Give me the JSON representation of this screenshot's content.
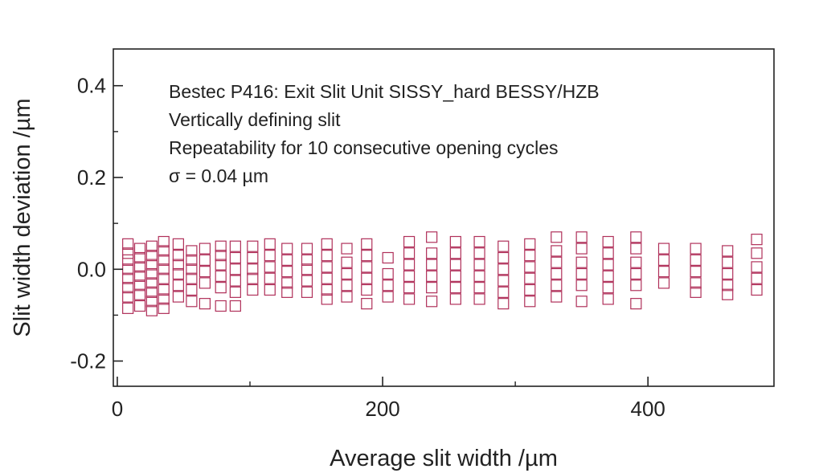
{
  "chart_data": {
    "type": "scatter",
    "xlabel": "Average slit width /µm",
    "ylabel": "Slit width deviation /µm",
    "xlim": [
      -3,
      495
    ],
    "ylim": [
      -0.255,
      0.48
    ],
    "xticks": [
      0,
      200,
      400
    ],
    "yticks": [
      -0.2,
      0.0,
      0.2,
      0.4
    ],
    "xtick_labels": [
      "0",
      "200",
      "400"
    ],
    "ytick_labels": [
      "-0.2",
      "0.0",
      "0.2",
      "0.4"
    ],
    "grid": false,
    "marker": "open-square",
    "marker_color": "#b0305a",
    "annotations": [
      "Bestec P416: Exit Slit Unit SISSY_hard BESSY/HZB",
      "Vertically defining slit",
      "Repeatability for 10 consecutive opening cycles",
      "σ = 0.04 µm"
    ],
    "series": [
      {
        "points": [
          [
            8,
            0.055
          ],
          [
            8,
            0.035
          ],
          [
            8,
            0.02
          ],
          [
            8,
            0.0
          ],
          [
            8,
            -0.02
          ],
          [
            8,
            -0.04
          ],
          [
            8,
            -0.06
          ],
          [
            8,
            -0.085
          ],
          [
            17,
            0.045
          ],
          [
            17,
            0.025
          ],
          [
            17,
            0.005
          ],
          [
            17,
            -0.015
          ],
          [
            17,
            -0.035
          ],
          [
            17,
            -0.055
          ],
          [
            17,
            -0.08
          ],
          [
            26,
            0.05
          ],
          [
            26,
            0.03
          ],
          [
            26,
            0.01
          ],
          [
            26,
            -0.01
          ],
          [
            26,
            -0.03
          ],
          [
            26,
            -0.05
          ],
          [
            26,
            -0.07
          ],
          [
            26,
            -0.09
          ],
          [
            35,
            0.06
          ],
          [
            35,
            0.04
          ],
          [
            35,
            0.02
          ],
          [
            35,
            0.0
          ],
          [
            35,
            -0.02
          ],
          [
            35,
            -0.045
          ],
          [
            35,
            -0.065
          ],
          [
            35,
            -0.085
          ],
          [
            46,
            0.055
          ],
          [
            46,
            0.03
          ],
          [
            46,
            0.01
          ],
          [
            46,
            -0.01
          ],
          [
            46,
            -0.035
          ],
          [
            46,
            -0.06
          ],
          [
            56,
            0.04
          ],
          [
            56,
            0.02
          ],
          [
            56,
            0.0
          ],
          [
            56,
            -0.02
          ],
          [
            56,
            -0.045
          ],
          [
            56,
            -0.07
          ],
          [
            66,
            0.045
          ],
          [
            66,
            0.02
          ],
          [
            66,
            -0.005
          ],
          [
            66,
            -0.03
          ],
          [
            66,
            -0.075
          ],
          [
            78,
            0.05
          ],
          [
            78,
            0.03
          ],
          [
            78,
            0.01
          ],
          [
            78,
            -0.015
          ],
          [
            78,
            -0.04
          ],
          [
            78,
            -0.08
          ],
          [
            89,
            0.05
          ],
          [
            89,
            0.025
          ],
          [
            89,
            0.0
          ],
          [
            89,
            -0.025
          ],
          [
            89,
            -0.05
          ],
          [
            89,
            -0.08
          ],
          [
            102,
            0.05
          ],
          [
            102,
            0.025
          ],
          [
            102,
            0.0
          ],
          [
            102,
            -0.02
          ],
          [
            102,
            -0.045
          ],
          [
            115,
            0.055
          ],
          [
            115,
            0.03
          ],
          [
            115,
            0.005
          ],
          [
            115,
            -0.02
          ],
          [
            115,
            -0.045
          ],
          [
            128,
            0.045
          ],
          [
            128,
            0.02
          ],
          [
            128,
            -0.005
          ],
          [
            128,
            -0.03
          ],
          [
            128,
            -0.05
          ],
          [
            143,
            0.045
          ],
          [
            143,
            0.02
          ],
          [
            143,
            0.0
          ],
          [
            143,
            -0.025
          ],
          [
            143,
            -0.05
          ],
          [
            158,
            0.055
          ],
          [
            158,
            0.03
          ],
          [
            158,
            0.005
          ],
          [
            158,
            -0.02
          ],
          [
            158,
            -0.045
          ],
          [
            158,
            -0.065
          ],
          [
            173,
            0.045
          ],
          [
            173,
            0.015
          ],
          [
            173,
            -0.01
          ],
          [
            173,
            -0.035
          ],
          [
            173,
            -0.06
          ],
          [
            188,
            0.055
          ],
          [
            188,
            0.03
          ],
          [
            188,
            0.005
          ],
          [
            188,
            -0.02
          ],
          [
            188,
            -0.045
          ],
          [
            188,
            -0.075
          ],
          [
            204,
            0.025
          ],
          [
            204,
            -0.01
          ],
          [
            204,
            -0.035
          ],
          [
            204,
            -0.06
          ],
          [
            220,
            0.06
          ],
          [
            220,
            0.035
          ],
          [
            220,
            0.01
          ],
          [
            220,
            -0.015
          ],
          [
            220,
            -0.04
          ],
          [
            220,
            -0.065
          ],
          [
            237,
            0.07
          ],
          [
            237,
            0.035
          ],
          [
            237,
            0.01
          ],
          [
            237,
            -0.015
          ],
          [
            237,
            -0.04
          ],
          [
            237,
            -0.07
          ],
          [
            255,
            0.06
          ],
          [
            255,
            0.035
          ],
          [
            255,
            0.01
          ],
          [
            255,
            -0.015
          ],
          [
            255,
            -0.04
          ],
          [
            255,
            -0.065
          ],
          [
            273,
            0.06
          ],
          [
            273,
            0.035
          ],
          [
            273,
            0.01
          ],
          [
            273,
            -0.015
          ],
          [
            273,
            -0.04
          ],
          [
            273,
            -0.065
          ],
          [
            291,
            0.05
          ],
          [
            291,
            0.025
          ],
          [
            291,
            0.0
          ],
          [
            291,
            -0.025
          ],
          [
            291,
            -0.05
          ],
          [
            291,
            -0.075
          ],
          [
            311,
            0.055
          ],
          [
            311,
            0.03
          ],
          [
            311,
            0.005
          ],
          [
            311,
            -0.02
          ],
          [
            311,
            -0.045
          ],
          [
            311,
            -0.07
          ],
          [
            331,
            0.07
          ],
          [
            331,
            0.04
          ],
          [
            331,
            0.015
          ],
          [
            331,
            -0.01
          ],
          [
            331,
            -0.035
          ],
          [
            331,
            -0.06
          ],
          [
            350,
            0.07
          ],
          [
            350,
            0.045
          ],
          [
            350,
            0.015
          ],
          [
            350,
            -0.01
          ],
          [
            350,
            -0.035
          ],
          [
            350,
            -0.07
          ],
          [
            370,
            0.06
          ],
          [
            370,
            0.035
          ],
          [
            370,
            0.01
          ],
          [
            370,
            -0.015
          ],
          [
            370,
            -0.04
          ],
          [
            370,
            -0.065
          ],
          [
            391,
            0.07
          ],
          [
            391,
            0.045
          ],
          [
            391,
            0.015
          ],
          [
            391,
            -0.01
          ],
          [
            391,
            -0.035
          ],
          [
            391,
            -0.075
          ],
          [
            412,
            0.045
          ],
          [
            412,
            0.02
          ],
          [
            412,
            -0.005
          ],
          [
            412,
            -0.03
          ],
          [
            436,
            0.045
          ],
          [
            436,
            0.02
          ],
          [
            436,
            -0.005
          ],
          [
            436,
            -0.03
          ],
          [
            436,
            -0.05
          ],
          [
            460,
            0.04
          ],
          [
            460,
            0.015
          ],
          [
            460,
            -0.01
          ],
          [
            460,
            -0.035
          ],
          [
            460,
            -0.055
          ],
          [
            482,
            0.065
          ],
          [
            482,
            0.035
          ],
          [
            482,
            0.005
          ],
          [
            482,
            -0.02
          ],
          [
            482,
            -0.045
          ]
        ]
      }
    ]
  }
}
